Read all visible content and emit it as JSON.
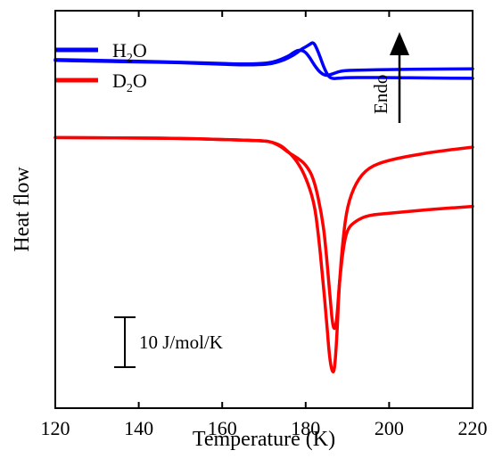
{
  "chart_data": {
    "type": "line",
    "xlabel": "Temperature (K)",
    "ylabel": "Heat flow",
    "xlim": [
      120,
      220
    ],
    "xticks": [
      "120",
      "140",
      "160",
      "180",
      "200",
      "220"
    ],
    "y_units": "arbitrary (offset heat flow); scale bar = 10 J/mol/K",
    "ylim": [
      -52,
      52
    ],
    "grid": false,
    "legend_position": "top-left",
    "legend": [
      {
        "name": "H",
        "sub": "2",
        "tail": "O",
        "color": "#0000ff"
      },
      {
        "name": "D",
        "sub": "2",
        "tail": "O",
        "color": "#ff0000"
      }
    ],
    "annotations": {
      "endo_label": "Endo",
      "scale_bar_label": "10 J/mol/K",
      "scale_bar_size": 10
    },
    "series": [
      {
        "name": "H2O",
        "color": "#0000ff",
        "curves": [
          {
            "x": [
              120,
              130,
              140,
              150,
              160,
              165,
              170,
              172,
              174,
              176,
              178,
              179,
              180,
              181,
              181.8,
              182.5,
              183.5,
              184.5,
              185.5,
              186.5,
              187.5,
              190,
              195,
              200,
              210,
              220
            ],
            "y": [
              39,
              38.8,
              38.6,
              38.4,
              38,
              37.8,
              37.9,
              38.2,
              38.8,
              39.7,
              41,
              42,
              42.5,
              43.2,
              43.8,
              42.5,
              39.8,
              36.8,
              34.7,
              34.2,
              34.3,
              34.5,
              34.5,
              34.5,
              34.4,
              34.3
            ]
          },
          {
            "x": [
              120,
              130,
              140,
              150,
              160,
              165,
              170,
              172,
              174,
              176,
              177,
              178,
              179,
              180,
              181,
              182,
              183,
              184,
              185,
              186,
              187,
              188,
              190,
              195,
              200,
              210,
              220
            ],
            "y": [
              39.2,
              39,
              38.8,
              38.5,
              38.2,
              38,
              38.2,
              38.5,
              39.2,
              40.2,
              41,
              41.6,
              41.7,
              41.1,
              39.7,
              37.9,
              36.4,
              35.4,
              35,
              35.3,
              35.7,
              36.1,
              36.4,
              36.5,
              36.6,
              36.7,
              36.8
            ]
          }
        ]
      },
      {
        "name": "D2O",
        "color": "#ff0000",
        "curves": [
          {
            "x": [
              120,
              140,
              150,
              160,
              170,
              172,
              174,
              176,
              178,
              180,
              182,
              183,
              184,
              185,
              185.5,
              186,
              186.6,
              187,
              187.5,
              188,
              189,
              190,
              192,
              195,
              200,
              210,
              220
            ],
            "y": [
              18.8,
              18.7,
              18.6,
              18.3,
              18,
              17.6,
              16.8,
              15,
              12.5,
              8.5,
              2,
              -6,
              -17,
              -29,
              -36,
              -41,
              -43,
              -41,
              -33,
              -20,
              -7,
              1,
              7,
              11,
              13,
              15,
              16.3
            ]
          },
          {
            "x": [
              120,
              150,
              160,
              170,
              172,
              174,
              175,
              176,
              178,
              180,
              182,
              184,
              185,
              186,
              186.5,
              187,
              187.5,
              188,
              189,
              190,
              192,
              195,
              200,
              210,
              220
            ],
            "y": [
              18.8,
              18.6,
              18.3,
              18,
              17.6,
              16.5,
              15.6,
              14.8,
              13.5,
              11.8,
              8,
              -2,
              -12,
              -25,
              -30.5,
              -31.5,
              -28.5,
              -20,
              -10,
              -5,
              -3,
              -1.5,
              -1,
              0,
              0.8
            ]
          }
        ]
      }
    ]
  }
}
